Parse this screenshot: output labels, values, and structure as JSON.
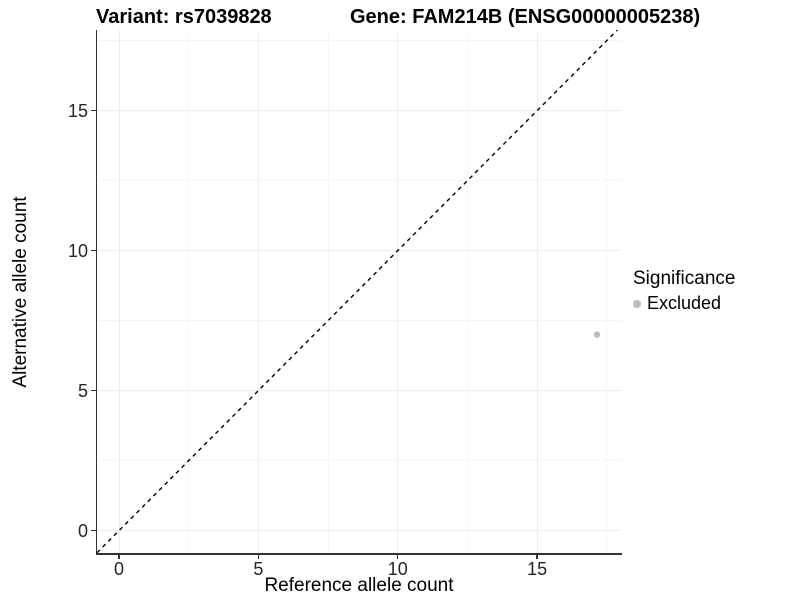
{
  "chart_data": {
    "type": "scatter",
    "title_left": "Variant: rs7039828",
    "title_right": "Gene: FAM214B (ENSG00000005238)",
    "xlabel": "Reference allele count",
    "ylabel": "Alternative allele count",
    "xlim": [
      -0.79,
      18.01
    ],
    "ylim": [
      -0.8,
      17.88
    ],
    "x_major_ticks": [
      0,
      5,
      10,
      15
    ],
    "x_minor_gridlines": [
      2.5,
      7.5,
      12.5,
      17.5
    ],
    "y_major_ticks": [
      0,
      5,
      10,
      15
    ],
    "y_minor_gridlines": [
      2.5,
      7.5,
      12.5,
      17.5
    ],
    "grid": "major every 5 and minor every 2.5, very light gray, white background",
    "legend": {
      "title": "Significance",
      "position": "right",
      "entries": [
        {
          "label": "Excluded",
          "color": "#bdbdbd"
        }
      ]
    },
    "reference_line": {
      "equation": "y = x",
      "style": "dashed",
      "color": "#000000"
    },
    "series": [
      {
        "name": "Excluded",
        "color": "#bdbdbd",
        "points": [
          {
            "x": 17.15,
            "y": 7
          }
        ]
      }
    ]
  },
  "colors": {
    "background": "#ffffff",
    "axis_line": "#333333",
    "major_grid": "#ededed",
    "minor_grid": "#f5f5f5",
    "point": "#bdbdbd",
    "text": "#000000"
  }
}
